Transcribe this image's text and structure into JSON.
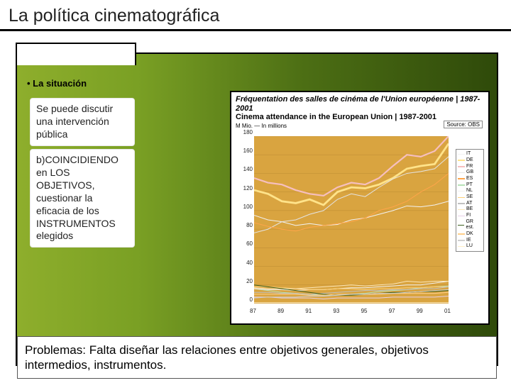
{
  "title": "La política cinematográfica",
  "bullet_label": "• La situación",
  "box1": "Se puede discutir una intervención pública",
  "box2": "b)COINCIDIENDO en LOS OBJETIVOS, cuestionar la eficacia de los INSTRUMENTOS elegidos",
  "bottom": "Problemas: Falta diseñar las relaciones entre objetivos generales, objetivos intermedios, instrumentos.",
  "chart": {
    "title_fr": "Fréquentation des salles de cinéma de l'Union européenne | 1987-2001",
    "title_en": "Cinema attendance in the European Union | 1987-2001",
    "subtitle": "M Mio. — In millions",
    "source": "Source: OBS",
    "ymin": 0,
    "ymax": 180,
    "ytick_step": 20,
    "yticks": [
      0,
      20,
      40,
      60,
      80,
      100,
      120,
      140,
      160,
      180
    ],
    "xticks": [
      "87",
      "89",
      "91",
      "93",
      "95",
      "97",
      "99",
      "01"
    ],
    "plot_bg": "#d9a440",
    "years": [
      1987,
      1988,
      1989,
      1990,
      1991,
      1992,
      1993,
      1994,
      1995,
      1996,
      1997,
      1998,
      1999,
      2000,
      2001
    ],
    "series": [
      {
        "label": "IT",
        "color": "#f2f2f2",
        "width": 1,
        "data": [
          95,
          90,
          88,
          84,
          86,
          84,
          85,
          90,
          92,
          96,
          100,
          105,
          104,
          106,
          110
        ]
      },
      {
        "label": "DE",
        "color": "#ffe38a",
        "width": 2.8,
        "data": [
          122,
          118,
          110,
          108,
          112,
          106,
          120,
          125,
          124,
          128,
          135,
          145,
          148,
          150,
          172
        ]
      },
      {
        "label": "FR",
        "color": "#f6bfbf",
        "width": 2.2,
        "data": [
          135,
          130,
          128,
          122,
          118,
          116,
          125,
          130,
          128,
          135,
          148,
          160,
          158,
          164,
          180
        ]
      },
      {
        "label": "GB",
        "color": "#e4e4e4",
        "width": 1,
        "data": [
          76,
          80,
          88,
          90,
          96,
          100,
          112,
          118,
          115,
          125,
          134,
          140,
          142,
          145,
          158
        ]
      },
      {
        "label": "ES",
        "color": "#ffa54a",
        "width": 1,
        "data": [
          87,
          83,
          80,
          78,
          82,
          84,
          86,
          88,
          92,
          100,
          104,
          110,
          120,
          128,
          140
        ]
      },
      {
        "label": "PT",
        "color": "#b7e2b7",
        "width": 1,
        "data": [
          16,
          14,
          12,
          11,
          10,
          9,
          9,
          10,
          11,
          13,
          14,
          15,
          17,
          18,
          19
        ]
      },
      {
        "label": "NL",
        "color": "#f1f1f1",
        "width": 1,
        "data": [
          16,
          15,
          15,
          14,
          15,
          15,
          16,
          17,
          17,
          18,
          19,
          20,
          20,
          22,
          24
        ]
      },
      {
        "label": "SE",
        "color": "#ffd27a",
        "width": 1,
        "data": [
          18,
          18,
          17,
          16,
          15,
          15,
          16,
          16,
          15,
          16,
          16,
          17,
          17,
          18,
          18
        ]
      },
      {
        "label": "AT",
        "color": "#c0c0c0",
        "width": 1,
        "data": [
          12,
          12,
          11,
          11,
          10,
          11,
          12,
          13,
          14,
          14,
          15,
          15,
          16,
          16,
          18
        ]
      },
      {
        "label": "BE",
        "color": "#fce6b7",
        "width": 1,
        "data": [
          17,
          16,
          16,
          16,
          17,
          18,
          19,
          20,
          19,
          20,
          21,
          24,
          23,
          24,
          24
        ]
      },
      {
        "label": "FI",
        "color": "#e8d1e8",
        "width": 1,
        "data": [
          7,
          7,
          6,
          6,
          6,
          5,
          6,
          6,
          6,
          6,
          7,
          7,
          7,
          7,
          8
        ]
      },
      {
        "label": "GR est.",
        "color": "#3c5f1f",
        "width": 1,
        "data": [
          20,
          18,
          16,
          14,
          12,
          10,
          9,
          9,
          10,
          11,
          12,
          12,
          13,
          13,
          14
        ]
      },
      {
        "label": "DK",
        "color": "#ffcf8a",
        "width": 1,
        "data": [
          10,
          10,
          10,
          10,
          9,
          9,
          10,
          10,
          10,
          10,
          11,
          11,
          11,
          11,
          12
        ]
      },
      {
        "label": "IE",
        "color": "#cfcfcf",
        "width": 1,
        "data": [
          6,
          7,
          7,
          7,
          8,
          8,
          9,
          10,
          10,
          11,
          11,
          12,
          13,
          14,
          15
        ]
      },
      {
        "label": "LU",
        "color": "#fff0c8",
        "width": 1,
        "data": [
          1,
          1,
          1,
          1,
          1,
          1,
          1,
          1,
          1,
          1,
          1,
          1,
          1,
          1,
          1
        ]
      }
    ]
  }
}
